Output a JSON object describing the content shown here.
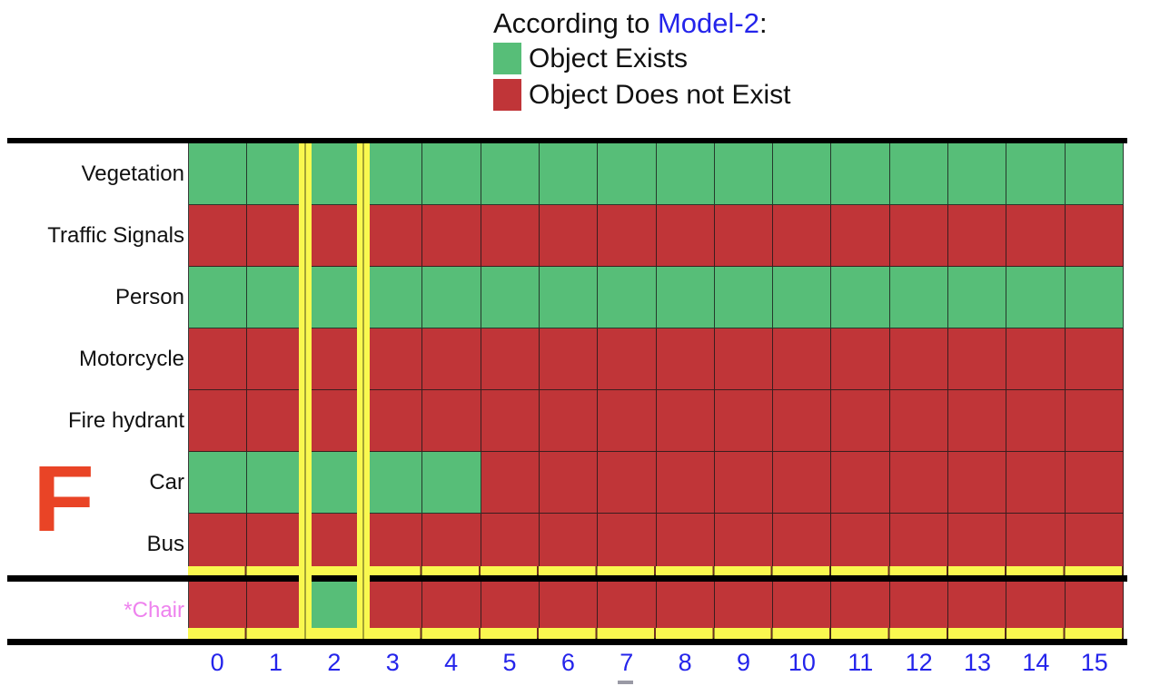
{
  "colors": {
    "exists_green": "#57BE78",
    "not_exists_red": "#C03538",
    "highlight_yellow": "#F9F84F",
    "highlight_olive_line": "#A3A235",
    "grid_line": "#1c1c1c",
    "axis_blue": "#2424EB",
    "chair_violet": "#EE82EE",
    "false_letter_red": "#E94426",
    "frame_remnant_gray": "#9A9AA5"
  },
  "legend": {
    "title_prefix": "According to ",
    "model_name": "Model-2",
    "title_suffix": ":",
    "items": [
      {
        "label": "Object Exists",
        "color": "#57BE78"
      },
      {
        "label": "Object Does not Exist",
        "color": "#C03538"
      }
    ]
  },
  "annotation": {
    "letter": "F"
  },
  "chart_data": {
    "type": "heatmap",
    "value_legend": {
      "1": "Object Exists",
      "0": "Object Does not Exist"
    },
    "x_ticks": [
      "0",
      "1",
      "2",
      "3",
      "4",
      "5",
      "6",
      "7",
      "8",
      "9",
      "10",
      "11",
      "12",
      "13",
      "14",
      "15"
    ],
    "rows": [
      {
        "label": "Vegetation",
        "values": [
          1,
          1,
          1,
          1,
          1,
          1,
          1,
          1,
          1,
          1,
          1,
          1,
          1,
          1,
          1,
          1
        ]
      },
      {
        "label": "Traffic Signals",
        "values": [
          0,
          0,
          0,
          0,
          0,
          0,
          0,
          0,
          0,
          0,
          0,
          0,
          0,
          0,
          0,
          0
        ]
      },
      {
        "label": "Person",
        "values": [
          1,
          1,
          1,
          1,
          1,
          1,
          1,
          1,
          1,
          1,
          1,
          1,
          1,
          1,
          1,
          1
        ]
      },
      {
        "label": "Motorcycle",
        "values": [
          0,
          0,
          0,
          0,
          0,
          0,
          0,
          0,
          0,
          0,
          0,
          0,
          0,
          0,
          0,
          0
        ]
      },
      {
        "label": "Fire hydrant",
        "values": [
          0,
          0,
          0,
          0,
          0,
          0,
          0,
          0,
          0,
          0,
          0,
          0,
          0,
          0,
          0,
          0
        ]
      },
      {
        "label": "Car",
        "values": [
          1,
          1,
          1,
          1,
          1,
          0,
          0,
          0,
          0,
          0,
          0,
          0,
          0,
          0,
          0,
          0
        ]
      },
      {
        "label": "Bus",
        "values": [
          0,
          0,
          0,
          0,
          0,
          0,
          0,
          0,
          0,
          0,
          0,
          0,
          0,
          0,
          0,
          0
        ]
      }
    ],
    "separated_row": {
      "label": "*Chair",
      "values": [
        0,
        0,
        1,
        0,
        0,
        0,
        0,
        0,
        0,
        0,
        0,
        0,
        0,
        0,
        0,
        0
      ]
    },
    "highlighted_column": 2
  }
}
